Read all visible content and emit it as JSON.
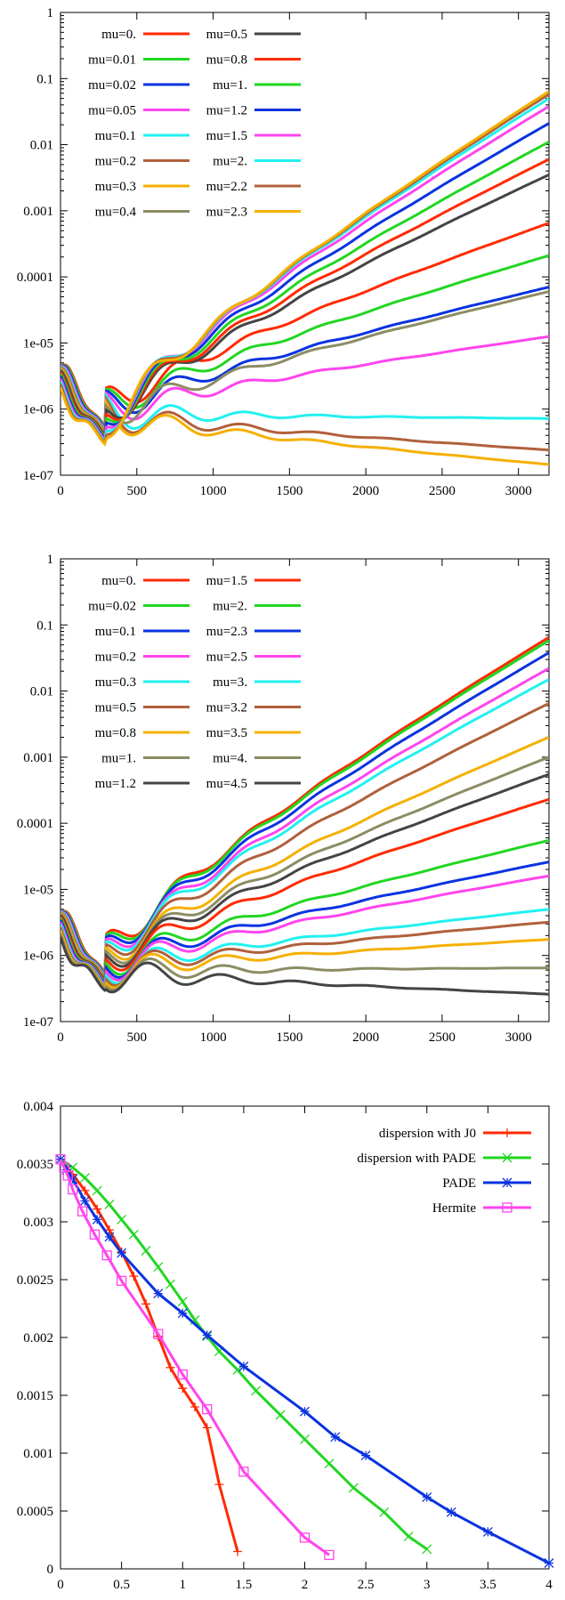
{
  "chart_data": [
    {
      "type": "line",
      "y_scale": "log",
      "xlim": [
        0,
        3200
      ],
      "ylim": [
        1e-07,
        1
      ],
      "x_ticks": [
        "0",
        "500",
        "1000",
        "1500",
        "2000",
        "2500",
        "3000"
      ],
      "y_ticks": [
        "1e-07",
        "1e-06",
        "1e-05",
        "0.0001",
        "0.001",
        "0.01",
        "0.1",
        "1"
      ],
      "grid": false,
      "legend_position": "top-left",
      "series": [
        {
          "name": "mu=0.",
          "color": "#ff2a00",
          "end_value": 0.00065
        },
        {
          "name": "mu=0.01",
          "color": "#22d622",
          "end_value": 0.00021
        },
        {
          "name": "mu=0.02",
          "color": "#0a33e0",
          "end_value": 7e-05
        },
        {
          "name": "mu=0.05",
          "color": "#ff44ee",
          "end_value": 1.25e-05
        },
        {
          "name": "mu=0.1",
          "color": "#22f0f0",
          "end_value": 7.2e-07
        },
        {
          "name": "mu=0.2",
          "color": "#b0603c",
          "end_value": 2.4e-07
        },
        {
          "name": "mu=0.3",
          "color": "#f5b000",
          "end_value": 1.45e-07
        },
        {
          "name": "mu=0.4",
          "color": "#8c8c64",
          "end_value": 6e-05
        },
        {
          "name": "mu=0.5",
          "color": "#444444",
          "end_value": 0.0035
        },
        {
          "name": "mu=0.8",
          "color": "#ff2a00",
          "end_value": 0.006
        },
        {
          "name": "mu=1.",
          "color": "#22d622",
          "end_value": 0.011
        },
        {
          "name": "mu=1.2",
          "color": "#0a33e0",
          "end_value": 0.021
        },
        {
          "name": "mu=1.5",
          "color": "#ff44ee",
          "end_value": 0.038
        },
        {
          "name": "mu=2.",
          "color": "#22f0f0",
          "end_value": 0.05
        },
        {
          "name": "mu=2.2",
          "color": "#b0603c",
          "end_value": 0.058
        },
        {
          "name": "mu=2.3",
          "color": "#f5b000",
          "end_value": 0.064
        }
      ]
    },
    {
      "type": "line",
      "y_scale": "log",
      "xlim": [
        0,
        3200
      ],
      "ylim": [
        1e-07,
        1
      ],
      "x_ticks": [
        "0",
        "500",
        "1000",
        "1500",
        "2000",
        "2500",
        "3000"
      ],
      "y_ticks": [
        "1e-07",
        "1e-06",
        "1e-05",
        "0.0001",
        "0.001",
        "0.01",
        "0.1",
        "1"
      ],
      "grid": false,
      "legend_position": "top-left",
      "series": [
        {
          "name": "mu=0.",
          "color": "#ff2a00",
          "end_value": 0.065
        },
        {
          "name": "mu=0.02",
          "color": "#22d622",
          "end_value": 0.058
        },
        {
          "name": "mu=0.1",
          "color": "#0a33e0",
          "end_value": 0.038
        },
        {
          "name": "mu=0.2",
          "color": "#ff44ee",
          "end_value": 0.022
        },
        {
          "name": "mu=0.3",
          "color": "#22f0f0",
          "end_value": 0.015
        },
        {
          "name": "mu=0.5",
          "color": "#b0603c",
          "end_value": 0.0065
        },
        {
          "name": "mu=0.8",
          "color": "#f5b000",
          "end_value": 0.002
        },
        {
          "name": "mu=1.",
          "color": "#8c8c64",
          "end_value": 0.001
        },
        {
          "name": "mu=1.2",
          "color": "#444444",
          "end_value": 0.00055
        },
        {
          "name": "mu=1.5",
          "color": "#ff2a00",
          "end_value": 0.00023
        },
        {
          "name": "mu=2.",
          "color": "#22d622",
          "end_value": 5.5e-05
        },
        {
          "name": "mu=2.3",
          "color": "#0a33e0",
          "end_value": 2.6e-05
        },
        {
          "name": "mu=2.5",
          "color": "#ff44ee",
          "end_value": 1.6e-05
        },
        {
          "name": "mu=3.",
          "color": "#22f0f0",
          "end_value": 5e-06
        },
        {
          "name": "mu=3.2",
          "color": "#b0603c",
          "end_value": 3.2e-06
        },
        {
          "name": "mu=3.5",
          "color": "#f5b000",
          "end_value": 1.75e-06
        },
        {
          "name": "mu=4.",
          "color": "#8c8c64",
          "end_value": 6.5e-07
        },
        {
          "name": "mu=4.5",
          "color": "#444444",
          "end_value": 2.6e-07
        }
      ]
    },
    {
      "type": "line",
      "y_scale": "linear",
      "xlim": [
        0,
        4
      ],
      "ylim": [
        0,
        0.004
      ],
      "x_ticks": [
        "0",
        "0.5",
        "1",
        "1.5",
        "2",
        "2.5",
        "3",
        "3.5",
        "4"
      ],
      "y_ticks": [
        "0",
        "0.0005",
        "0.001",
        "0.0015",
        "0.002",
        "0.0025",
        "0.003",
        "0.0035",
        "0.004"
      ],
      "grid": false,
      "legend_position": "top-right",
      "series": [
        {
          "name": "dispersion with J0",
          "color": "#ff2a00",
          "marker": "plus",
          "x": [
            0,
            0.1,
            0.2,
            0.3,
            0.4,
            0.5,
            0.6,
            0.7,
            0.8,
            0.9,
            1.0,
            1.1,
            1.2,
            1.3,
            1.45
          ],
          "y": [
            0.00354,
            0.00341,
            0.00327,
            0.00311,
            0.00293,
            0.00274,
            0.00253,
            0.00229,
            0.00201,
            0.00174,
            0.00156,
            0.0014,
            0.00122,
            0.00073,
            0.00015
          ]
        },
        {
          "name": "dispersion with PADE",
          "color": "#22d622",
          "marker": "cross",
          "x": [
            0,
            0.1,
            0.2,
            0.3,
            0.4,
            0.5,
            0.6,
            0.7,
            0.8,
            0.9,
            1.0,
            1.1,
            1.2,
            1.3,
            1.45,
            1.6,
            1.8,
            2.0,
            2.2,
            2.4,
            2.65,
            2.85,
            3.0
          ],
          "y": [
            0.00354,
            0.00347,
            0.00338,
            0.00327,
            0.00315,
            0.00302,
            0.00289,
            0.00275,
            0.00261,
            0.00246,
            0.00231,
            0.00215,
            0.00201,
            0.00188,
            0.00172,
            0.00154,
            0.00133,
            0.00112,
            0.00091,
            0.0007,
            0.00049,
            0.00028,
            0.00017
          ]
        },
        {
          "name": "PADE",
          "color": "#0a33e0",
          "marker": "star",
          "x": [
            0,
            0.05,
            0.1,
            0.2,
            0.3,
            0.4,
            0.5,
            0.8,
            1.0,
            1.2,
            1.5,
            2.0,
            2.25,
            2.5,
            3.0,
            3.2,
            3.5,
            4.0
          ],
          "y": [
            0.00354,
            0.00345,
            0.00337,
            0.00318,
            0.00302,
            0.00287,
            0.00273,
            0.00238,
            0.00221,
            0.00202,
            0.00175,
            0.00136,
            0.00114,
            0.00098,
            0.00062,
            0.00049,
            0.00032,
            5e-05
          ]
        },
        {
          "name": "Hermite",
          "color": "#ff44ee",
          "marker": "square",
          "x": [
            0,
            0.03,
            0.06,
            0.1,
            0.18,
            0.28,
            0.38,
            0.5,
            0.8,
            1.0,
            1.2,
            1.5,
            2.0,
            2.2
          ],
          "y": [
            0.00354,
            0.00347,
            0.0034,
            0.00328,
            0.00309,
            0.00289,
            0.00271,
            0.00249,
            0.00203,
            0.00168,
            0.00138,
            0.00084,
            0.00027,
            0.00012
          ]
        }
      ]
    }
  ]
}
